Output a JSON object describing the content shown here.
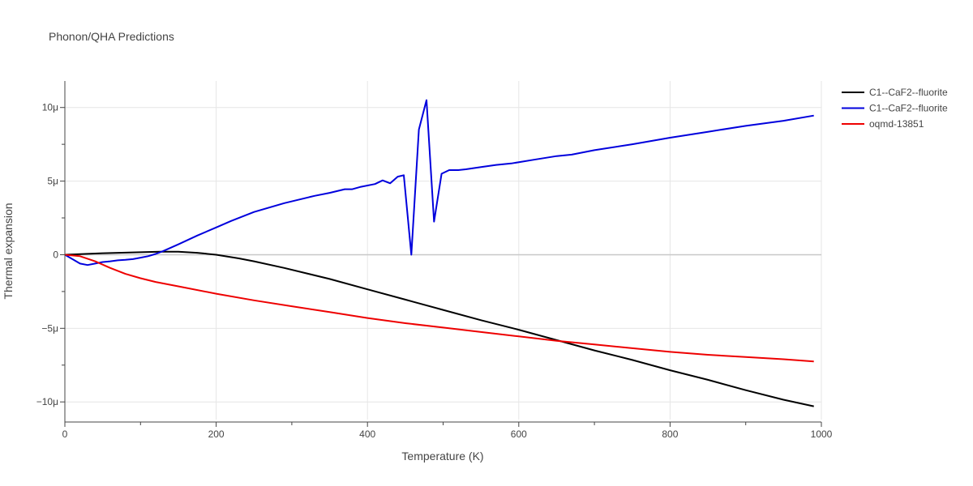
{
  "chart_data": {
    "type": "line",
    "title": "Phonon/QHA Predictions",
    "xlabel": "Temperature (K)",
    "ylabel": "Thermal expansion",
    "xlim": [
      0,
      1000
    ],
    "ylim": [
      -11.2,
      11.8
    ],
    "x_ticks": [
      0,
      200,
      400,
      600,
      800,
      1000
    ],
    "x_tick_labels": [
      "0",
      "200",
      "400",
      "600",
      "800",
      "1000"
    ],
    "y_ticks": [
      -10,
      -5,
      0,
      5,
      10
    ],
    "y_tick_labels": [
      "−10μ",
      "−5μ",
      "0",
      "5μ",
      "10μ"
    ],
    "grid": true,
    "legend_position": "top-right",
    "series": [
      {
        "name": "C1--CaF2--fluorite",
        "color": "#000000",
        "x": [
          0,
          50,
          100,
          125,
          150,
          175,
          200,
          230,
          250,
          290,
          350,
          400,
          450,
          500,
          550,
          600,
          650,
          700,
          750,
          800,
          850,
          900,
          950,
          990
        ],
        "y": [
          0,
          0.1,
          0.17,
          0.2,
          0.2,
          0.13,
          0.0,
          -0.25,
          -0.45,
          -0.9,
          -1.65,
          -2.35,
          -3.05,
          -3.75,
          -4.45,
          -5.1,
          -5.8,
          -6.5,
          -7.15,
          -7.85,
          -8.5,
          -9.2,
          -9.85,
          -10.3
        ]
      },
      {
        "name": "C1--CaF2--fluorite",
        "color": "#0000dd",
        "x": [
          0,
          10,
          20,
          30,
          40,
          50,
          60,
          70,
          80,
          90,
          100,
          110,
          120,
          130,
          150,
          175,
          200,
          220,
          250,
          290,
          330,
          350,
          370,
          380,
          390,
          410,
          420,
          430,
          440,
          448,
          458,
          468,
          478,
          488,
          498,
          508,
          520,
          530,
          550,
          570,
          590,
          620,
          650,
          670,
          700,
          750,
          800,
          850,
          900,
          950,
          990
        ],
        "y": [
          0,
          -0.3,
          -0.6,
          -0.7,
          -0.6,
          -0.5,
          -0.45,
          -0.38,
          -0.35,
          -0.3,
          -0.2,
          -0.1,
          0.05,
          0.25,
          0.7,
          1.3,
          1.85,
          2.3,
          2.9,
          3.5,
          4.0,
          4.2,
          4.45,
          4.45,
          4.6,
          4.8,
          5.05,
          4.85,
          5.3,
          5.4,
          0.0,
          8.5,
          10.5,
          2.25,
          5.5,
          5.75,
          5.75,
          5.8,
          5.95,
          6.1,
          6.2,
          6.45,
          6.7,
          6.8,
          7.1,
          7.5,
          7.95,
          8.35,
          8.75,
          9.1,
          9.45
        ]
      },
      {
        "name": "oqmd-13851",
        "color": "#ee0000",
        "x": [
          0,
          20,
          40,
          60,
          80,
          100,
          120,
          150,
          200,
          250,
          300,
          350,
          400,
          450,
          500,
          550,
          600,
          650,
          700,
          750,
          800,
          850,
          900,
          950,
          990
        ],
        "y": [
          0,
          -0.1,
          -0.45,
          -0.9,
          -1.3,
          -1.6,
          -1.85,
          -2.15,
          -2.65,
          -3.1,
          -3.5,
          -3.9,
          -4.3,
          -4.65,
          -4.95,
          -5.25,
          -5.55,
          -5.85,
          -6.1,
          -6.35,
          -6.6,
          -6.8,
          -6.95,
          -7.1,
          -7.25
        ]
      }
    ]
  }
}
